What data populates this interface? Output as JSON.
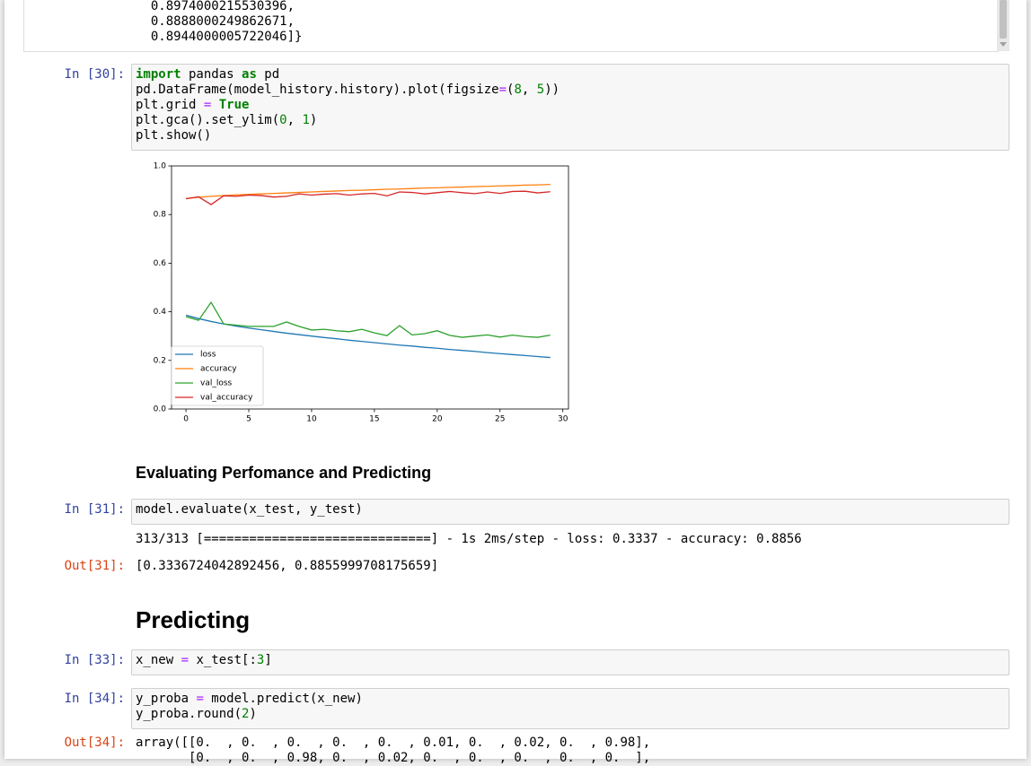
{
  "scroll_output": {
    "lines": [
      "  0.8974000215530396,",
      "  0.8888000249862671,",
      "  0.8944000005722046]}"
    ]
  },
  "cells": [
    {
      "prompt": "In [30]:",
      "code": [
        [
          {
            "text": "import",
            "color": "#008000",
            "bold": true
          },
          " pandas ",
          {
            "text": "as",
            "color": "#008000",
            "bold": true
          },
          " pd"
        ],
        [
          "pd.DataFrame(model_history.history).plot(figsize",
          {
            "text": "=",
            "color": "#AA22FF"
          },
          "(",
          {
            "text": "8",
            "color": "#008000"
          },
          ", ",
          {
            "text": "5",
            "color": "#008000"
          },
          "))"
        ],
        [
          "plt.grid ",
          {
            "text": "=",
            "color": "#AA22FF"
          },
          " ",
          {
            "text": "True",
            "color": "#008000",
            "bold": true
          }
        ],
        [
          "plt.gca().set_ylim(",
          {
            "text": "0",
            "color": "#008000"
          },
          ", ",
          {
            "text": "1",
            "color": "#008000"
          },
          ")"
        ],
        [
          "plt.show()"
        ]
      ]
    },
    {
      "heading": "Evaluating Perfomance and Predicting"
    },
    {
      "prompt": "In [31]:",
      "code": [
        [
          "model.evaluate(x_test, y_test)"
        ]
      ],
      "stream": [
        "313/313 [==============================] - 1s 2ms/step - loss: 0.3337 - accuracy: 0.8856"
      ],
      "out_prompt": "Out[31]:",
      "result": [
        "[0.3336724042892456, 0.8855999708175659]"
      ]
    },
    {
      "heading": "Predicting"
    },
    {
      "prompt": "In [33]:",
      "code": [
        [
          "x_new ",
          {
            "text": "=",
            "color": "#AA22FF"
          },
          " x_test[:",
          {
            "text": "3",
            "color": "#008000"
          },
          "]"
        ]
      ]
    },
    {
      "prompt": "In [34]:",
      "code": [
        [
          "y_proba ",
          {
            "text": "=",
            "color": "#AA22FF"
          },
          " model.predict(x_new)"
        ],
        [
          "y_proba.round(",
          {
            "text": "2",
            "color": "#008000"
          },
          ")"
        ]
      ],
      "out_prompt": "Out[34]:",
      "result": [
        "array([[0.  , 0.  , 0.  , 0.  , 0.  , 0.01, 0.  , 0.02, 0.  , 0.98],",
        "       [0.  , 0.  , 0.98, 0.  , 0.02, 0.  , 0.  , 0.  , 0.  , 0.  ],"
      ]
    }
  ],
  "chart_data": {
    "type": "line",
    "x": [
      0,
      1,
      2,
      3,
      4,
      5,
      6,
      7,
      8,
      9,
      10,
      11,
      12,
      13,
      14,
      15,
      16,
      17,
      18,
      19,
      20,
      21,
      22,
      23,
      24,
      25,
      26,
      27,
      28,
      29
    ],
    "series": [
      {
        "name": "loss",
        "color": "#1f77b4",
        "values": [
          0.386,
          0.372,
          0.36,
          0.35,
          0.341,
          0.333,
          0.326,
          0.319,
          0.312,
          0.306,
          0.3,
          0.294,
          0.289,
          0.283,
          0.278,
          0.273,
          0.268,
          0.263,
          0.259,
          0.254,
          0.25,
          0.245,
          0.241,
          0.237,
          0.232,
          0.228,
          0.224,
          0.22,
          0.216,
          0.212
        ]
      },
      {
        "name": "accuracy",
        "color": "#ff7f0e",
        "values": [
          0.866,
          0.871,
          0.875,
          0.878,
          0.881,
          0.883,
          0.885,
          0.887,
          0.889,
          0.891,
          0.893,
          0.895,
          0.897,
          0.899,
          0.9,
          0.902,
          0.904,
          0.905,
          0.907,
          0.909,
          0.91,
          0.912,
          0.913,
          0.915,
          0.916,
          0.918,
          0.919,
          0.921,
          0.922,
          0.924
        ]
      },
      {
        "name": "val_loss",
        "color": "#2ca02c",
        "values": [
          0.38,
          0.365,
          0.439,
          0.35,
          0.345,
          0.34,
          0.34,
          0.34,
          0.358,
          0.34,
          0.325,
          0.328,
          0.322,
          0.318,
          0.328,
          0.313,
          0.302,
          0.343,
          0.305,
          0.31,
          0.322,
          0.303,
          0.295,
          0.3,
          0.305,
          0.296,
          0.304,
          0.298,
          0.295,
          0.304
        ]
      },
      {
        "name": "val_accuracy",
        "color": "#d62728",
        "values": [
          0.865,
          0.873,
          0.841,
          0.877,
          0.875,
          0.88,
          0.878,
          0.872,
          0.875,
          0.885,
          0.88,
          0.884,
          0.886,
          0.88,
          0.885,
          0.887,
          0.877,
          0.893,
          0.891,
          0.885,
          0.89,
          0.895,
          0.89,
          0.886,
          0.893,
          0.887,
          0.895,
          0.896,
          0.889,
          0.894
        ]
      }
    ],
    "xlim": [
      -1.15,
      30.45
    ],
    "xticks": [
      0,
      5,
      10,
      15,
      20,
      25,
      30
    ],
    "ylim": [
      0,
      1
    ],
    "yticks": [
      {
        "value": 0,
        "label": "0.0"
      },
      {
        "value": 0.2,
        "label": "0.2"
      },
      {
        "value": 0.4,
        "label": "0.4"
      },
      {
        "value": 0.6,
        "label": "0.6"
      },
      {
        "value": 0.8,
        "label": "0.8"
      },
      {
        "value": 1,
        "label": "1.0"
      }
    ],
    "grid": false,
    "legend": "lower left"
  }
}
